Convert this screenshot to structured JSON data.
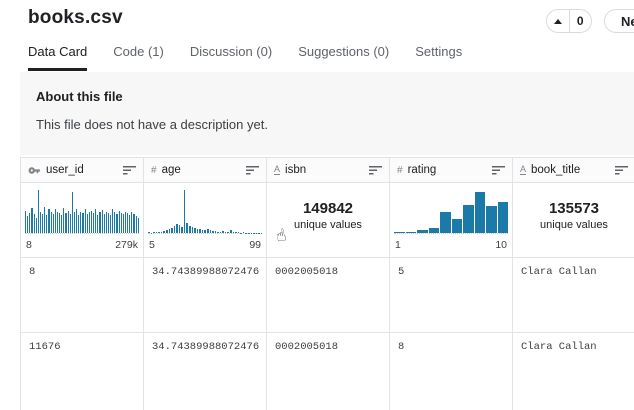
{
  "header": {
    "title": "books.csv",
    "upvote": {
      "count": "0"
    },
    "new_button": {
      "label": "Ne"
    }
  },
  "tabs": [
    {
      "label": "Data Card",
      "active": true
    },
    {
      "label": "Code (1)",
      "active": false
    },
    {
      "label": "Discussion (0)",
      "active": false
    },
    {
      "label": "Suggestions (0)",
      "active": false
    },
    {
      "label": "Settings",
      "active": false
    }
  ],
  "about": {
    "heading": "About this file",
    "body": "This file does not have a description yet."
  },
  "icons": {
    "hand_pointer": "☝",
    "number_type": "#",
    "string_type": "A",
    "id_type": "key"
  },
  "colors": {
    "bar": "#1c7aa8",
    "card_bg": "#f7f7f8",
    "border": "#e1e3e6",
    "active_tab_underline": "#202124"
  },
  "table": {
    "columns": [
      {
        "name": "user_id",
        "type": "id",
        "summary": {
          "kind": "histogram",
          "min_label": "8",
          "max_label": "279k",
          "bars": [
            52,
            40,
            46,
            58,
            44,
            36,
            100,
            50,
            45,
            60,
            42,
            55,
            48,
            44,
            57,
            50,
            46,
            42,
            58,
            47,
            52,
            44,
            96,
            49,
            55,
            43,
            50,
            47,
            57,
            44,
            49,
            52,
            46,
            55,
            41,
            48,
            53,
            45,
            50,
            47,
            43,
            56,
            48,
            45,
            52,
            47,
            44,
            50,
            46,
            42,
            48,
            45,
            40,
            36
          ]
        }
      },
      {
        "name": "age",
        "type": "number",
        "summary": {
          "kind": "histogram",
          "min_label": "5",
          "max_label": "99",
          "bars": [
            2,
            1,
            2,
            2,
            3,
            3,
            4,
            6,
            9,
            12,
            16,
            22,
            19,
            14,
            100,
            24,
            17,
            14,
            12,
            10,
            9,
            8,
            6,
            10,
            7,
            5,
            4,
            3,
            3,
            4,
            2,
            2,
            7,
            3,
            2,
            2,
            1,
            2,
            1,
            1,
            1,
            1,
            1,
            1,
            1
          ]
        }
      },
      {
        "name": "isbn",
        "type": "string",
        "summary": {
          "kind": "unique",
          "count": "149842",
          "label": "unique values"
        }
      },
      {
        "name": "rating",
        "type": "number",
        "summary": {
          "kind": "histogram",
          "min_label": "1",
          "max_label": "10",
          "bars": [
            2,
            3,
            6,
            12,
            48,
            32,
            66,
            96,
            62,
            73
          ]
        }
      },
      {
        "name": "book_title",
        "type": "string",
        "summary": {
          "kind": "unique",
          "count": "135573",
          "label": "unique values"
        }
      }
    ],
    "rows": [
      [
        "8",
        "34.74389988072476",
        "0002005018",
        "5",
        "Clara Callan"
      ],
      [
        "11676",
        "34.74389988072476",
        "0002005018",
        "8",
        "Clara Callan"
      ]
    ]
  }
}
